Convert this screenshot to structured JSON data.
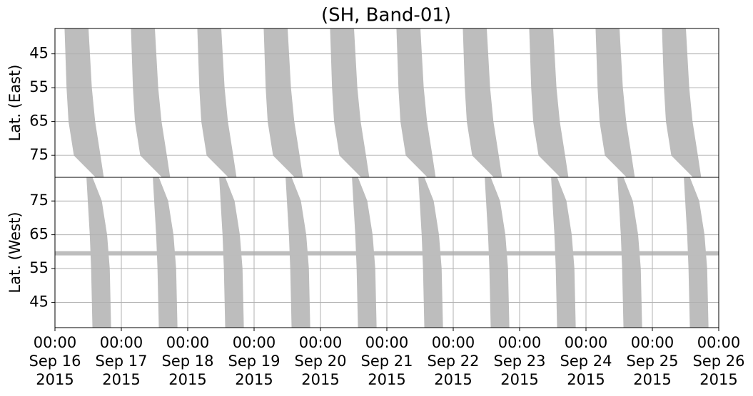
{
  "chart_data": [
    {
      "type": "area",
      "title": "(SH, Band-01)",
      "ylabel": "Lat. (East)",
      "ylim": [
        37.5,
        81.5
      ],
      "inverted": true,
      "yticks": [
        45,
        55,
        65,
        75
      ],
      "grid": true,
      "color": "#bdbdbd",
      "xlim": [
        "2015-09-16T00:00",
        "2015-09-26T00:00"
      ],
      "lat": [
        37.5,
        55,
        65,
        75,
        81.5
      ],
      "swaths": [
        {
          "left": [
            "2015-09-16T03:36",
            "2015-09-16T04:19",
            "2015-09-16T05:02",
            "2015-09-16T06:58",
            "2015-09-16T14:53"
          ],
          "right": [
            "2015-09-16T12:00",
            "2015-09-16T13:12",
            "2015-09-16T14:24",
            "2015-09-16T16:19",
            "2015-09-16T17:31"
          ]
        },
        {
          "left": [
            "2015-09-17T03:36",
            "2015-09-17T04:19",
            "2015-09-17T05:02",
            "2015-09-17T06:58",
            "2015-09-17T14:53"
          ],
          "right": [
            "2015-09-17T12:00",
            "2015-09-17T13:12",
            "2015-09-17T14:24",
            "2015-09-17T16:19",
            "2015-09-17T17:31"
          ]
        },
        {
          "left": [
            "2015-09-18T03:36",
            "2015-09-18T04:19",
            "2015-09-18T05:02",
            "2015-09-18T06:58",
            "2015-09-18T14:53"
          ],
          "right": [
            "2015-09-18T12:00",
            "2015-09-18T13:12",
            "2015-09-18T14:24",
            "2015-09-18T16:19",
            "2015-09-18T17:31"
          ]
        },
        {
          "left": [
            "2015-09-19T03:36",
            "2015-09-19T04:19",
            "2015-09-19T05:02",
            "2015-09-19T06:58",
            "2015-09-19T14:53"
          ],
          "right": [
            "2015-09-19T12:00",
            "2015-09-19T13:12",
            "2015-09-19T14:24",
            "2015-09-19T16:19",
            "2015-09-19T17:31"
          ]
        },
        {
          "left": [
            "2015-09-20T03:36",
            "2015-09-20T04:19",
            "2015-09-20T05:02",
            "2015-09-20T06:58",
            "2015-09-20T14:53"
          ],
          "right": [
            "2015-09-20T12:00",
            "2015-09-20T13:12",
            "2015-09-20T14:24",
            "2015-09-20T16:19",
            "2015-09-20T17:31"
          ]
        },
        {
          "left": [
            "2015-09-21T03:36",
            "2015-09-21T04:19",
            "2015-09-21T05:02",
            "2015-09-21T06:58",
            "2015-09-21T14:53"
          ],
          "right": [
            "2015-09-21T12:00",
            "2015-09-21T13:12",
            "2015-09-21T14:24",
            "2015-09-21T16:19",
            "2015-09-21T17:31"
          ]
        },
        {
          "left": [
            "2015-09-22T03:36",
            "2015-09-22T04:19",
            "2015-09-22T05:02",
            "2015-09-22T06:58",
            "2015-09-22T14:53"
          ],
          "right": [
            "2015-09-22T12:00",
            "2015-09-22T13:12",
            "2015-09-22T14:24",
            "2015-09-22T16:19",
            "2015-09-22T17:31"
          ]
        },
        {
          "left": [
            "2015-09-23T03:36",
            "2015-09-23T04:19",
            "2015-09-23T05:02",
            "2015-09-23T06:58",
            "2015-09-23T14:53"
          ],
          "right": [
            "2015-09-23T12:00",
            "2015-09-23T13:12",
            "2015-09-23T14:24",
            "2015-09-23T16:19",
            "2015-09-23T17:31"
          ]
        },
        {
          "left": [
            "2015-09-24T03:36",
            "2015-09-24T04:19",
            "2015-09-24T05:02",
            "2015-09-24T06:58",
            "2015-09-24T14:53"
          ],
          "right": [
            "2015-09-24T12:00",
            "2015-09-24T13:12",
            "2015-09-24T14:24",
            "2015-09-24T16:19",
            "2015-09-24T17:31"
          ]
        },
        {
          "left": [
            "2015-09-25T03:36",
            "2015-09-25T04:19",
            "2015-09-25T05:02",
            "2015-09-25T06:58",
            "2015-09-25T14:53"
          ],
          "right": [
            "2015-09-25T12:00",
            "2015-09-25T13:12",
            "2015-09-25T14:24",
            "2015-09-25T16:19",
            "2015-09-25T17:31"
          ]
        }
      ]
    },
    {
      "type": "area",
      "ylabel": "Lat. (West)",
      "ylim": [
        37.5,
        82
      ],
      "inverted": false,
      "yticks": [
        45,
        55,
        65,
        75
      ],
      "grid": true,
      "color": "#bdbdbd",
      "xlim": [
        "2015-09-16T00:00",
        "2015-09-26T00:00"
      ],
      "xticks": [
        {
          "value": "2015-09-16T00:00",
          "label": [
            "00:00",
            "Sep 16",
            "2015"
          ]
        },
        {
          "value": "2015-09-17T00:00",
          "label": [
            "00:00",
            "Sep 17",
            "2015"
          ]
        },
        {
          "value": "2015-09-18T00:00",
          "label": [
            "00:00",
            "Sep 18",
            "2015"
          ]
        },
        {
          "value": "2015-09-19T00:00",
          "label": [
            "00:00",
            "Sep 19",
            "2015"
          ]
        },
        {
          "value": "2015-09-20T00:00",
          "label": [
            "00:00",
            "Sep 20",
            "2015"
          ]
        },
        {
          "value": "2015-09-21T00:00",
          "label": [
            "00:00",
            "Sep 21",
            "2015"
          ]
        },
        {
          "value": "2015-09-22T00:00",
          "label": [
            "00:00",
            "Sep 22",
            "2015"
          ]
        },
        {
          "value": "2015-09-23T00:00",
          "label": [
            "00:00",
            "Sep 23",
            "2015"
          ]
        },
        {
          "value": "2015-09-24T00:00",
          "label": [
            "00:00",
            "Sep 24",
            "2015"
          ]
        },
        {
          "value": "2015-09-25T00:00",
          "label": [
            "00:00",
            "Sep 25",
            "2015"
          ]
        },
        {
          "value": "2015-09-26T00:00",
          "label": [
            "00:00",
            "Sep 26",
            "2015"
          ]
        }
      ],
      "hline": 59.5,
      "lat": [
        82,
        75,
        65,
        55,
        37.5
      ],
      "swaths": [
        {
          "left": [
            "2015-09-16T11:31",
            "2015-09-16T12:00",
            "2015-09-16T12:43",
            "2015-09-16T13:12",
            "2015-09-16T13:41"
          ],
          "right": [
            "2015-09-16T13:26",
            "2015-09-16T16:48",
            "2015-09-16T18:43",
            "2015-09-16T19:41",
            "2015-09-16T20:10"
          ]
        },
        {
          "left": [
            "2015-09-17T11:31",
            "2015-09-17T12:00",
            "2015-09-17T12:43",
            "2015-09-17T13:12",
            "2015-09-17T13:41"
          ],
          "right": [
            "2015-09-17T13:26",
            "2015-09-17T16:48",
            "2015-09-17T18:43",
            "2015-09-17T19:41",
            "2015-09-17T20:10"
          ]
        },
        {
          "left": [
            "2015-09-18T11:31",
            "2015-09-18T12:00",
            "2015-09-18T12:43",
            "2015-09-18T13:12",
            "2015-09-18T13:41"
          ],
          "right": [
            "2015-09-18T13:26",
            "2015-09-18T16:48",
            "2015-09-18T18:43",
            "2015-09-18T19:41",
            "2015-09-18T20:10"
          ]
        },
        {
          "left": [
            "2015-09-19T11:31",
            "2015-09-19T12:00",
            "2015-09-19T12:43",
            "2015-09-19T13:12",
            "2015-09-19T13:41"
          ],
          "right": [
            "2015-09-19T13:26",
            "2015-09-19T16:48",
            "2015-09-19T18:43",
            "2015-09-19T19:41",
            "2015-09-19T20:10"
          ]
        },
        {
          "left": [
            "2015-09-20T11:31",
            "2015-09-20T12:00",
            "2015-09-20T12:43",
            "2015-09-20T13:12",
            "2015-09-20T13:41"
          ],
          "right": [
            "2015-09-20T13:26",
            "2015-09-20T16:48",
            "2015-09-20T18:43",
            "2015-09-20T19:41",
            "2015-09-20T20:10"
          ]
        },
        {
          "left": [
            "2015-09-21T11:31",
            "2015-09-21T12:00",
            "2015-09-21T12:43",
            "2015-09-21T13:12",
            "2015-09-21T13:41"
          ],
          "right": [
            "2015-09-21T13:26",
            "2015-09-21T16:48",
            "2015-09-21T18:43",
            "2015-09-21T19:41",
            "2015-09-21T20:10"
          ]
        },
        {
          "left": [
            "2015-09-22T11:31",
            "2015-09-22T12:00",
            "2015-09-22T12:43",
            "2015-09-22T13:12",
            "2015-09-22T13:41"
          ],
          "right": [
            "2015-09-22T13:26",
            "2015-09-22T16:48",
            "2015-09-22T18:43",
            "2015-09-22T19:41",
            "2015-09-22T20:10"
          ]
        },
        {
          "left": [
            "2015-09-23T11:31",
            "2015-09-23T12:00",
            "2015-09-23T12:43",
            "2015-09-23T13:12",
            "2015-09-23T13:41"
          ],
          "right": [
            "2015-09-23T13:26",
            "2015-09-23T16:48",
            "2015-09-23T18:43",
            "2015-09-23T19:41",
            "2015-09-23T20:10"
          ]
        },
        {
          "left": [
            "2015-09-24T11:31",
            "2015-09-24T12:00",
            "2015-09-24T12:43",
            "2015-09-24T13:12",
            "2015-09-24T13:41"
          ],
          "right": [
            "2015-09-24T13:26",
            "2015-09-24T16:48",
            "2015-09-24T18:43",
            "2015-09-24T19:41",
            "2015-09-24T20:10"
          ]
        },
        {
          "left": [
            "2015-09-25T11:31",
            "2015-09-25T12:00",
            "2015-09-25T12:43",
            "2015-09-25T13:12",
            "2015-09-25T13:41"
          ],
          "right": [
            "2015-09-25T13:26",
            "2015-09-25T16:48",
            "2015-09-25T18:43",
            "2015-09-25T19:41",
            "2015-09-25T20:10"
          ]
        }
      ]
    }
  ]
}
